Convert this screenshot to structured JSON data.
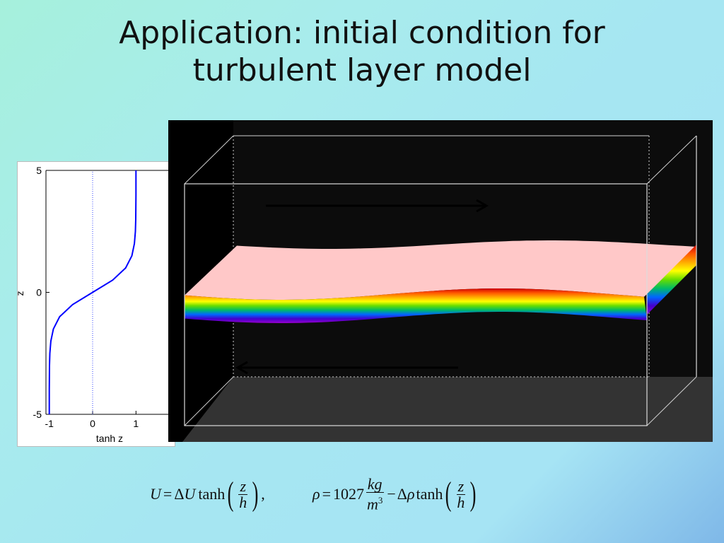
{
  "title": {
    "line1": "Application: initial condition for",
    "line2": "turbulent layer model"
  },
  "profile_plot": {
    "y_label": "z",
    "x_label": "tanh z",
    "y_ticks": [
      "5",
      "0",
      "-5"
    ],
    "x_ticks": [
      "-1",
      "0",
      "1"
    ],
    "line_color": "#0000ff",
    "reference_line_color": "#3344ff"
  },
  "chart_data": {
    "type": "line",
    "title": "",
    "xlabel": "tanh z",
    "ylabel": "z",
    "xlim": [
      -1.5,
      1.5
    ],
    "ylim": [
      -5,
      5
    ],
    "series": [
      {
        "z": [
          -5,
          -4,
          -3,
          -2.5,
          -2,
          -1.5,
          -1,
          -0.5,
          0,
          0.5,
          1,
          1.5,
          2,
          2.5,
          3,
          4,
          5
        ],
        "values": [
          -1.0,
          -0.9993,
          -0.9951,
          -0.9866,
          -0.964,
          -0.9051,
          -0.7616,
          -0.4621,
          0,
          0.4621,
          0.7616,
          0.9051,
          0.964,
          0.9866,
          0.9951,
          0.9993,
          1.0
        ]
      },
      {
        "z": [
          -5,
          5
        ],
        "values": [
          0,
          0
        ]
      }
    ],
    "grid": false
  },
  "visualization": {
    "background": "#000000",
    "floor_color": "#333333",
    "layer_top_color": "#ffc8c8",
    "layer_band_colors": [
      "#cc0000",
      "#ff5500",
      "#ffaa00",
      "#ffff00",
      "#66dd00",
      "#00bb66",
      "#0066ff",
      "#4400cc",
      "#9900cc"
    ],
    "upper_arrow": "right",
    "lower_arrow": "left"
  },
  "equations": {
    "velocity": {
      "lhs": "U",
      "eq": "=",
      "delta": "Δ",
      "var": "U",
      "fn": "tanh",
      "frac_num": "z",
      "frac_den": "h",
      "comma": ","
    },
    "density": {
      "lhs": "ρ",
      "eq": "=",
      "const": "1027",
      "unit_num": "kg",
      "unit_den": "m",
      "unit_exp": "3",
      "minus": "−",
      "delta": "Δ",
      "var": "ρ",
      "fn": "tanh",
      "frac_num": "z",
      "frac_den": "h"
    }
  }
}
